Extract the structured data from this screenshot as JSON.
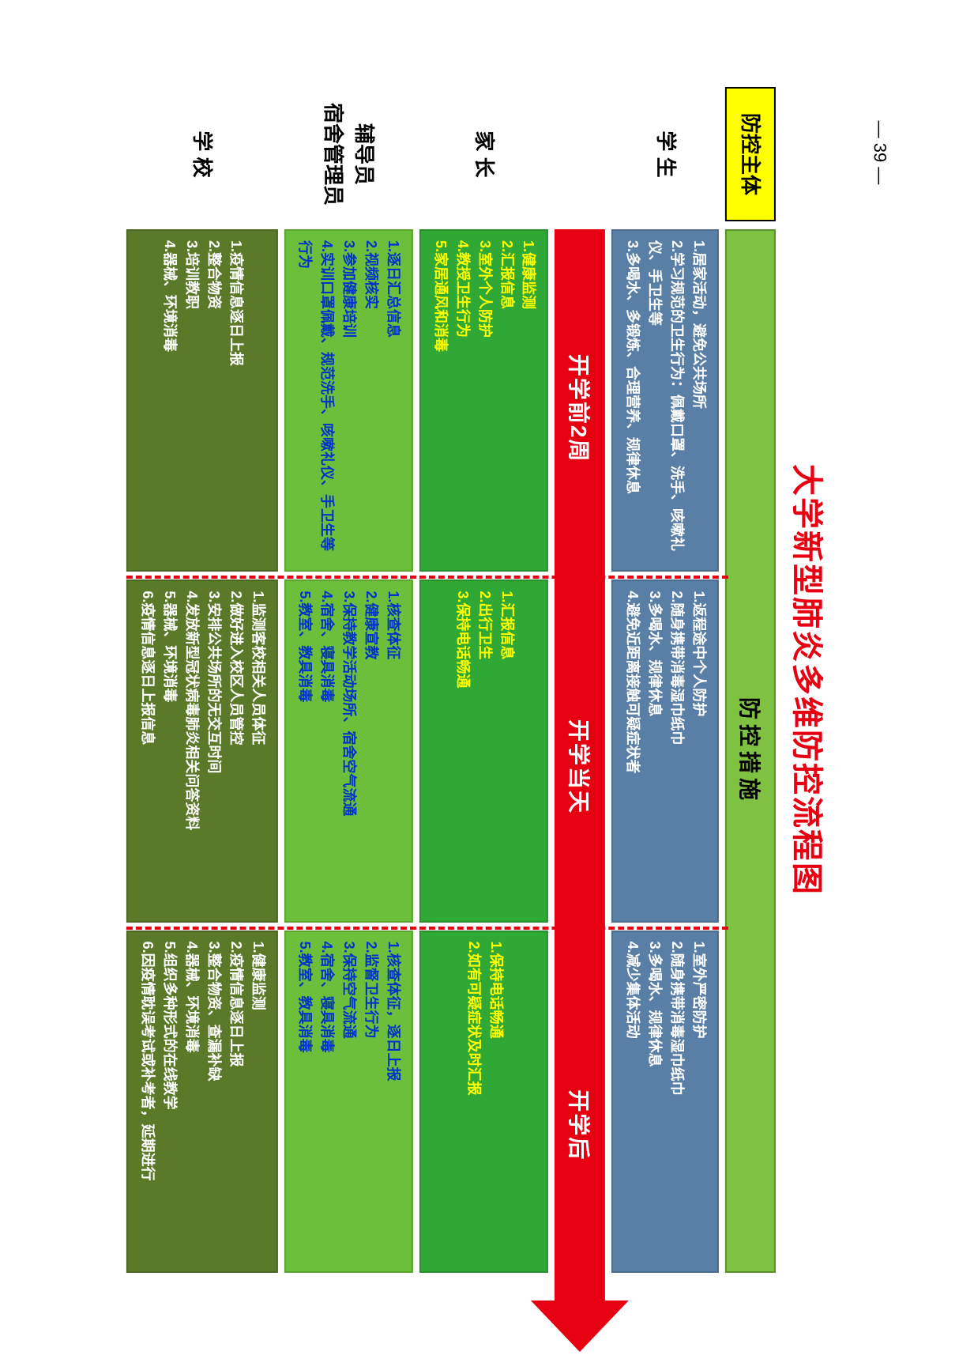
{
  "page_number": "— 39 —",
  "title": "大学新型肺炎多维防控流程图",
  "headers": {
    "subject": "防控主体",
    "measures": "防控措施"
  },
  "phases": {
    "before": "开学前2周",
    "day": "开学当天",
    "after": "开学后"
  },
  "rows": {
    "student": {
      "label": "学 生",
      "before": "1.居家活动，避免公共场所\n2.学习规范的卫生行为：佩戴口罩、洗手、咳嗽礼仪、手卫生等\n3.多喝水、多锻炼、合理营养、规律休息",
      "day": "1.返程途中个人防护\n2.随身携带消毒湿巾纸巾\n3.多喝水、规律休息\n4.避免近距离接触可疑症状者",
      "after": "1.室外严密防护\n2.随身携带消毒湿巾纸巾\n3.多喝水、规律休息\n4.减少集体活动"
    },
    "parent": {
      "label": "家 长",
      "before": "1.健康监测\n2.汇报信息\n3.室外个人防护\n4.教授卫生行为\n5.家居通风和消毒",
      "day": "1.汇报信息\n2.出行卫生\n3.保持电话畅通",
      "after": "1.保持电话畅通\n2.如有可疑症状及时汇报"
    },
    "counselor": {
      "label": "辅导员\n宿舍管理员",
      "before": "1.逐日汇总信息\n2.视频核实\n3.参加健康培训\n4.实训口罩佩戴、规范洗手、咳嗽礼仪、手卫生等行为",
      "day": "1.核查体征\n2.健康宣教\n3.保持教学活动场所、宿舍空气流通\n4.宿舍、寝具消毒\n5.教室、教具消毒",
      "after": "1.核查体征，逐日上报\n2.监督卫生行为\n3.保持空气流通\n4.宿舍、寝具消毒\n5.教室、教具消毒"
    },
    "school": {
      "label": "学 校",
      "before": "1.疫情信息逐日上报\n2.整合物资\n3.培训教职\n4.器械、环境消毒",
      "day": "1.监测客校相关人员体征\n2.做好进入校区人员管控\n3.安排公共场所的无交互时间\n4.发放新型冠状病毒肺炎相关问答资料\n5.器械、环境消毒\n6.疫情信息逐日上报信息",
      "after": "1.健康监测\n2.疫情信息逐日上报\n3.整合物资、查漏补缺\n4.器械、环境消毒\n5.组织多种形式的在线教学\n6.因疫情耽误考试或补考者，延期进行"
    }
  },
  "colors": {
    "title": "#e60012",
    "subject_bg": "#ffff00",
    "measures_bg": "#7fc241",
    "student_bg": "#5a7fa6",
    "parent_bg": "#2fa836",
    "parent_text": "#ffff00",
    "counselor_bg": "#6bbf3a",
    "counselor_text": "#0033cc",
    "school_bg": "#5a7a2a",
    "arrow": "#e60012",
    "dash": "#e60012"
  }
}
